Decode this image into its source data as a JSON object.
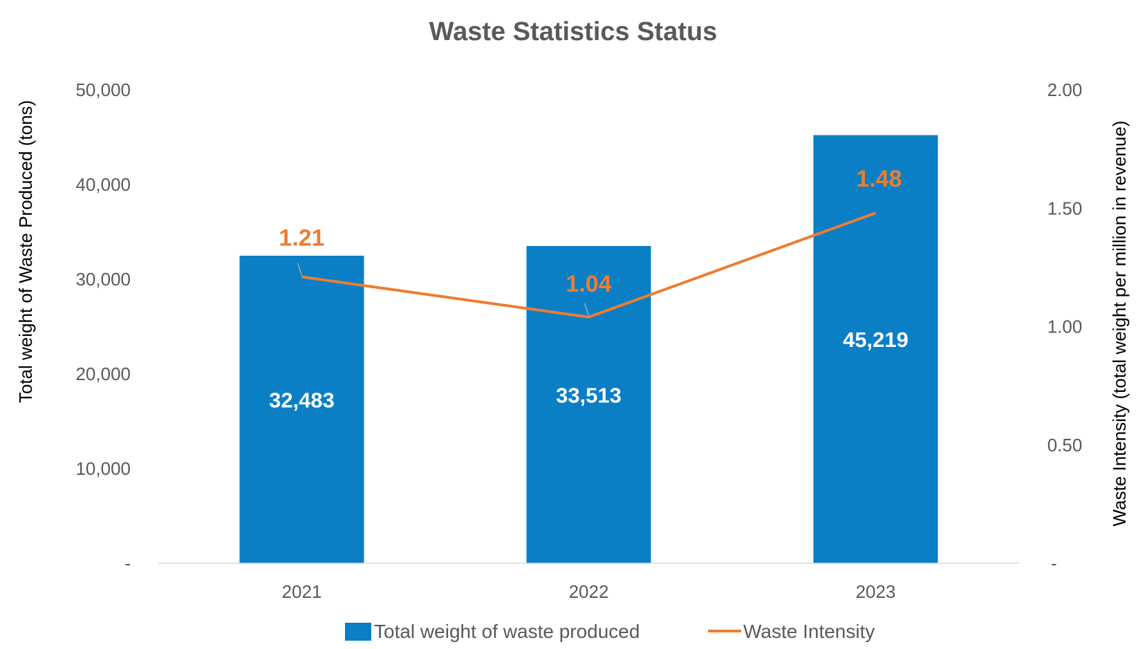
{
  "colors": {
    "bar": "#0A7FC6",
    "line": "#ED7D31",
    "axis_line": "#D9D9D9",
    "text": "#595959"
  },
  "chart_data": {
    "type": "bar",
    "title": "Waste Statistics Status",
    "categories": [
      "2021",
      "2022",
      "2023"
    ],
    "series": [
      {
        "name": "Total weight of waste produced",
        "type": "bar",
        "axis": "left",
        "values": [
          32483,
          33513,
          45219
        ],
        "labels": [
          "32,483",
          "33,513",
          "45,219"
        ]
      },
      {
        "name": "Waste Intensity",
        "type": "line",
        "axis": "right",
        "values": [
          1.21,
          1.04,
          1.48
        ],
        "labels": [
          "1.21",
          "1.04",
          "1.48"
        ]
      }
    ],
    "ylabel": "Total weight of Waste Produced (tons)",
    "y2label": "Waste Intensity (total weight per million in revenue)",
    "ylim": [
      0,
      50000
    ],
    "y2lim": [
      0,
      2.0
    ],
    "y_ticks": [
      0,
      10000,
      20000,
      30000,
      40000,
      50000
    ],
    "y_tick_labels": [
      "-",
      "10,000",
      "20,000",
      "30,000",
      "40,000",
      "50,000"
    ],
    "y2_ticks": [
      0,
      0.5,
      1.0,
      1.5,
      2.0
    ],
    "y2_tick_labels": [
      "-",
      "0.50",
      "1.00",
      "1.50",
      "2.00"
    ],
    "grid": false,
    "legend_position": "bottom"
  }
}
